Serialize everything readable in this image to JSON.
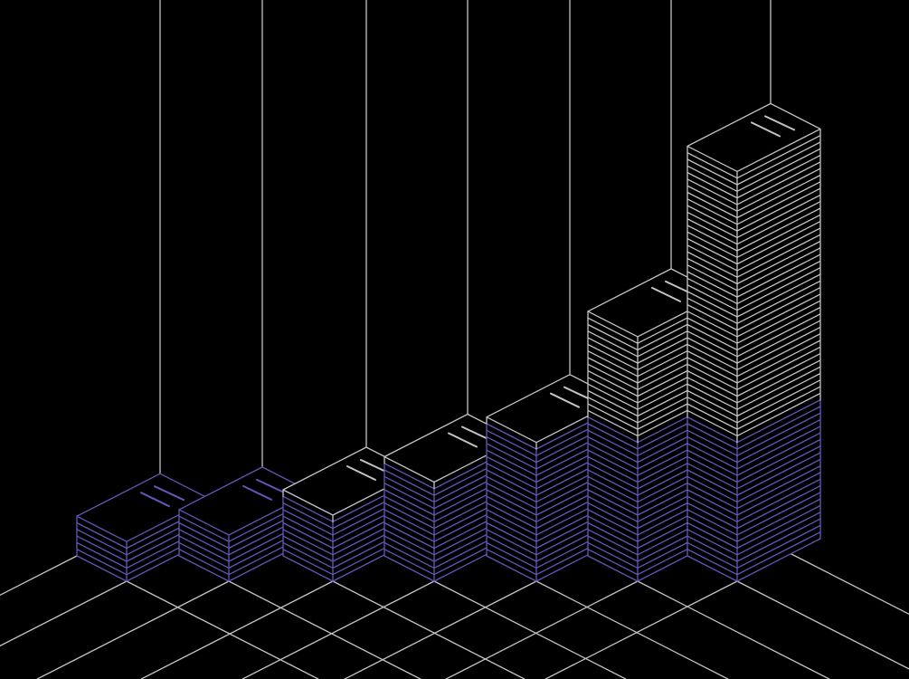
{
  "colors": {
    "background": "#000000",
    "line": "#c4c4c4",
    "accent": "#6258b8"
  },
  "stacks": [
    {
      "layers": 6
    },
    {
      "layers": 7
    },
    {
      "layers": 10
    },
    {
      "layers": 15
    },
    {
      "layers": 21
    },
    {
      "layers": 37
    },
    {
      "layers": 62
    }
  ],
  "accent_layers": 21
}
